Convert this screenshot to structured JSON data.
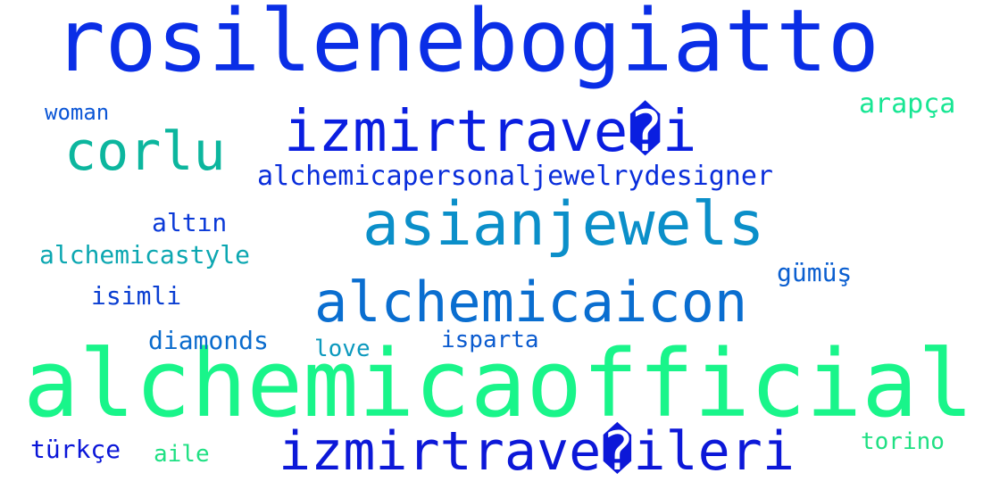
{
  "words": [
    {
      "text": "rosilenebogiatto",
      "color": "#0a2ee6"
    },
    {
      "text": "alchemicaofficial",
      "color": "#19f58a"
    },
    {
      "text": "izmirtrave�i",
      "color": "#0a1ee0"
    },
    {
      "text": "asianjewels",
      "color": "#0b8fc9"
    },
    {
      "text": "alchemicaicon",
      "color": "#0a6ed0"
    },
    {
      "text": "izmirtrave�ileri",
      "color": "#0c18d8"
    },
    {
      "text": "corlu",
      "color": "#0cb69e"
    },
    {
      "text": "alchemicapersonaljewelrydesigner",
      "color": "#0a2edb"
    },
    {
      "text": "woman",
      "color": "#0b56d6"
    },
    {
      "text": "arapça",
      "color": "#17e693"
    },
    {
      "text": "altın",
      "color": "#0b3ad8"
    },
    {
      "text": "alchemicastyle",
      "color": "#0ca7b1"
    },
    {
      "text": "gümüş",
      "color": "#0b5fd0"
    },
    {
      "text": "isimli",
      "color": "#0b3fd2"
    },
    {
      "text": "diamonds",
      "color": "#0b6ccd"
    },
    {
      "text": "love",
      "color": "#0c99be"
    },
    {
      "text": "isparta",
      "color": "#0b5bcf"
    },
    {
      "text": "türkçe",
      "color": "#0a16d8"
    },
    {
      "text": "aile",
      "color": "#1fe083"
    },
    {
      "text": "torino",
      "color": "#1fe083"
    }
  ],
  "background": "#ffffff"
}
